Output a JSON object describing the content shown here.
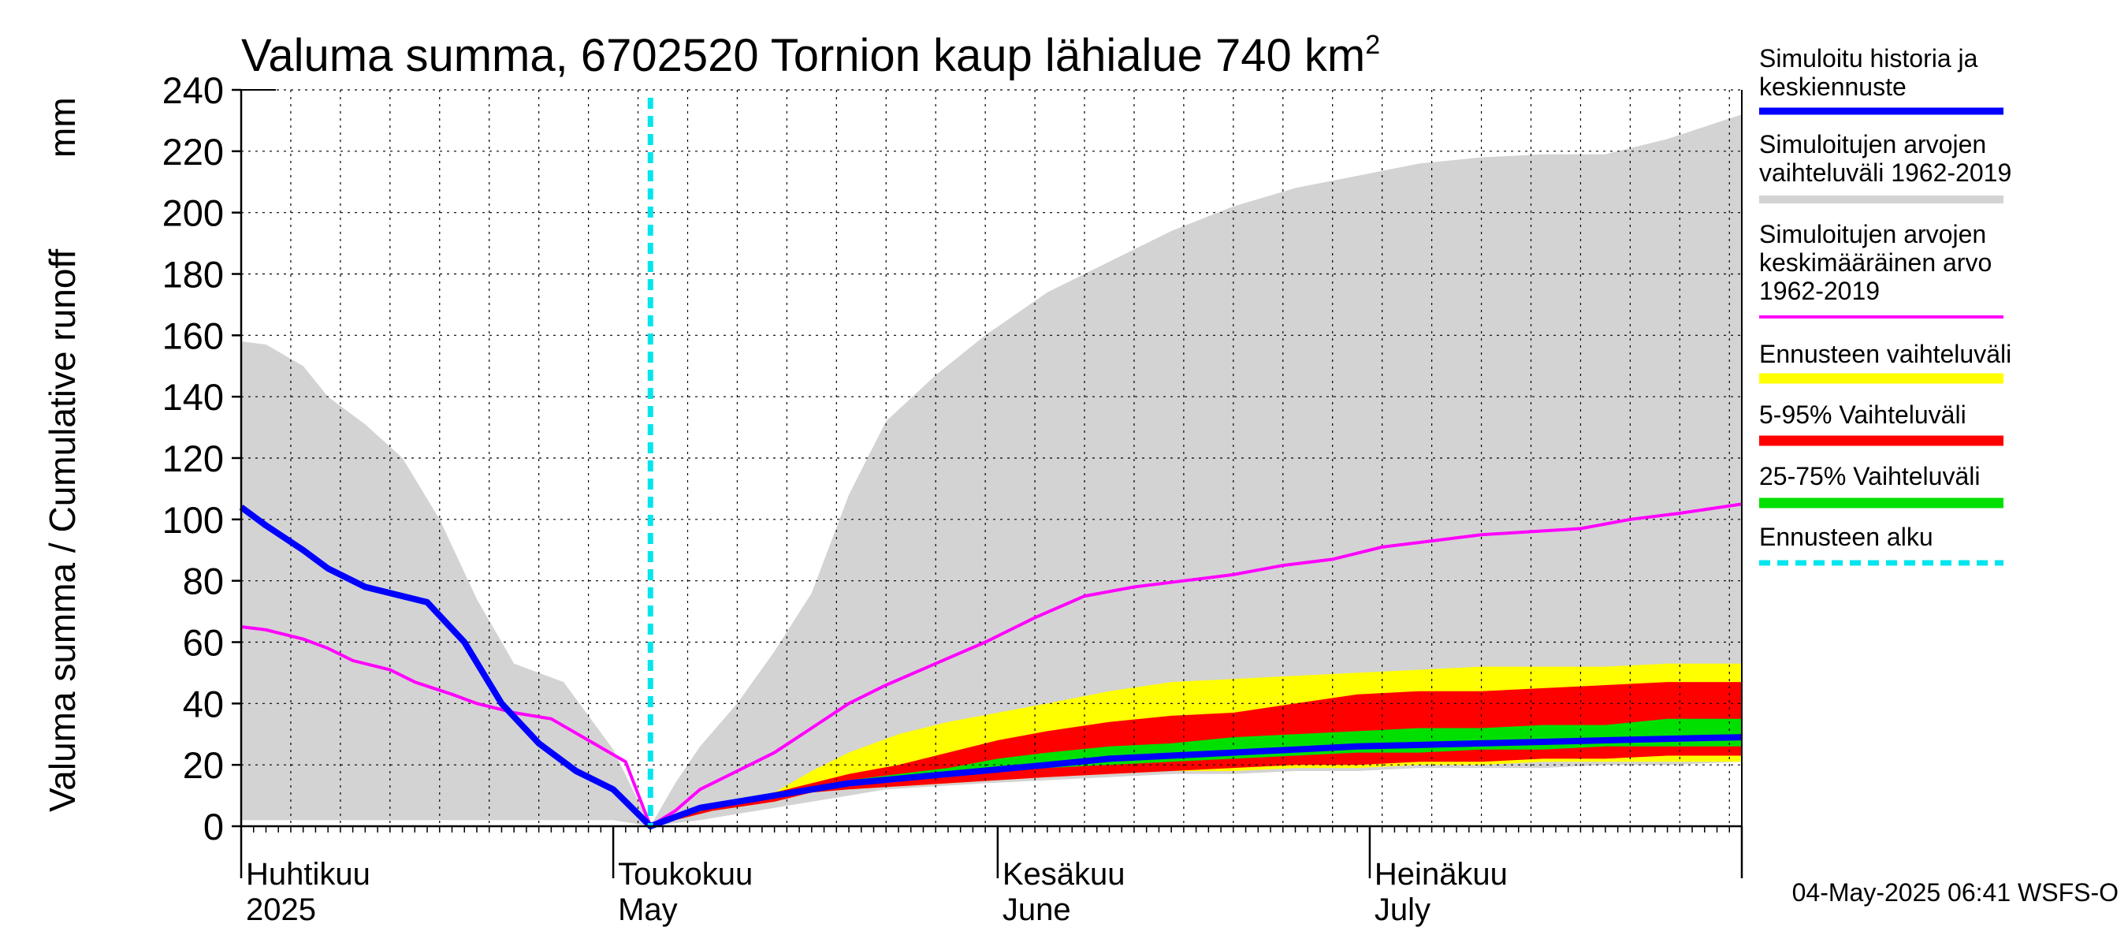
{
  "chart_data": {
    "type": "area",
    "title_main": "Valuma summa, 6702520 Tornion kaup lähialue 740 km",
    "title_sup": "2",
    "ylabel": "Valuma summa / Cumulative runoff",
    "ylabel_unit": "mm",
    "ylim": [
      0,
      240
    ],
    "yticks": [
      0,
      20,
      40,
      60,
      80,
      100,
      120,
      140,
      160,
      180,
      200,
      220,
      240
    ],
    "xlim": [
      "2025-04-01",
      "2025-07-31"
    ],
    "grid": true,
    "months": [
      {
        "date": "2025-04-01",
        "fi": "Huhtikuu",
        "en": "2025"
      },
      {
        "date": "2025-05-01",
        "fi": "Toukokuu",
        "en": "May"
      },
      {
        "date": "2025-06-01",
        "fi": "Kesäkuu",
        "en": "June"
      },
      {
        "date": "2025-07-01",
        "fi": "Heinäkuu",
        "en": "July"
      }
    ],
    "forecast_start": "2025-05-04",
    "colors": {
      "history_range": "#d3d3d3",
      "forecast_range": "#ffff00",
      "p5_95": "#ff0000",
      "p25_75": "#00e000",
      "median": "#0000ff",
      "mean": "#ff00ff",
      "forecast_start": "#00e5ee"
    },
    "legend": [
      {
        "key": "median",
        "lines": [
          "Simuloitu historia ja",
          "keskiennuste"
        ]
      },
      {
        "key": "history_range",
        "lines": [
          "Simuloitujen arvojen",
          "vaihteluväli 1962-2019"
        ]
      },
      {
        "key": "mean",
        "lines": [
          "Simuloitujen arvojen",
          "keskimääräinen arvo",
          "   1962-2019"
        ]
      },
      {
        "key": "forecast_range",
        "lines": [
          "Ennusteen vaihteluväli"
        ]
      },
      {
        "key": "p5_95",
        "lines": [
          "5-95% Vaihteluväli"
        ]
      },
      {
        "key": "p25_75",
        "lines": [
          "25-75% Vaihteluväli"
        ]
      },
      {
        "key": "forecast_start",
        "lines": [
          "Ennusteen alku"
        ]
      }
    ],
    "series": {
      "history_range": {
        "x": [
          "2025-04-01",
          "2025-04-03",
          "2025-04-06",
          "2025-04-08",
          "2025-04-11",
          "2025-04-14",
          "2025-04-17",
          "2025-04-20",
          "2025-04-23",
          "2025-04-27",
          "2025-05-01",
          "2025-05-04",
          "2025-05-06",
          "2025-05-08",
          "2025-05-11",
          "2025-05-14",
          "2025-05-17",
          "2025-05-20",
          "2025-05-23",
          "2025-05-27",
          "2025-05-31",
          "2025-06-05",
          "2025-06-10",
          "2025-06-15",
          "2025-06-20",
          "2025-06-25",
          "2025-06-30",
          "2025-07-05",
          "2025-07-10",
          "2025-07-15",
          "2025-07-20",
          "2025-07-25",
          "2025-07-31"
        ],
        "upper": [
          158,
          157,
          150,
          140,
          131,
          120,
          100,
          74,
          53,
          47,
          25,
          0,
          14,
          26,
          40,
          57,
          76,
          108,
          132,
          147,
          160,
          174,
          184,
          194,
          202,
          208,
          212,
          216,
          218,
          219,
          219,
          224,
          232
        ],
        "lower": [
          2,
          2,
          2,
          2,
          2,
          2,
          2,
          2,
          2,
          2,
          2,
          0,
          1,
          2,
          4,
          6,
          8,
          10,
          12,
          13,
          14,
          15,
          16,
          17,
          17,
          18,
          18,
          19,
          19,
          19,
          20,
          20,
          21
        ]
      },
      "mean": {
        "x": [
          "2025-04-01",
          "2025-04-03",
          "2025-04-06",
          "2025-04-08",
          "2025-04-10",
          "2025-04-13",
          "2025-04-15",
          "2025-04-18",
          "2025-04-20",
          "2025-04-23",
          "2025-04-26",
          "2025-04-29",
          "2025-05-02",
          "2025-05-04",
          "2025-05-06",
          "2025-05-08",
          "2025-05-11",
          "2025-05-14",
          "2025-05-17",
          "2025-05-20",
          "2025-05-23",
          "2025-05-27",
          "2025-05-31",
          "2025-06-04",
          "2025-06-08",
          "2025-06-12",
          "2025-06-16",
          "2025-06-20",
          "2025-06-24",
          "2025-06-28",
          "2025-07-02",
          "2025-07-06",
          "2025-07-10",
          "2025-07-14",
          "2025-07-18",
          "2025-07-22",
          "2025-07-26",
          "2025-07-31"
        ],
        "y": [
          65,
          64,
          61,
          58,
          54,
          51,
          47,
          43,
          40,
          37,
          35,
          28,
          21,
          0,
          5,
          12,
          18,
          24,
          32,
          40,
          46,
          53,
          60,
          68,
          75,
          78,
          80,
          82,
          85,
          87,
          91,
          93,
          95,
          96,
          97,
          100,
          102,
          105
        ]
      },
      "median": {
        "x": [
          "2025-04-01",
          "2025-04-03",
          "2025-04-06",
          "2025-04-08",
          "2025-04-11",
          "2025-04-14",
          "2025-04-16",
          "2025-04-19",
          "2025-04-22",
          "2025-04-25",
          "2025-04-28",
          "2025-05-01",
          "2025-05-04",
          "2025-05-06",
          "2025-05-08",
          "2025-05-11",
          "2025-05-14",
          "2025-05-17",
          "2025-05-20",
          "2025-05-24",
          "2025-05-28",
          "2025-06-01",
          "2025-06-05",
          "2025-06-10",
          "2025-06-15",
          "2025-06-20",
          "2025-06-25",
          "2025-06-30",
          "2025-07-05",
          "2025-07-10",
          "2025-07-15",
          "2025-07-20",
          "2025-07-25",
          "2025-07-31"
        ],
        "y": [
          104,
          98,
          90,
          84,
          78,
          75,
          73,
          60,
          40,
          27,
          18,
          12,
          0,
          3,
          6,
          8,
          10,
          12,
          14,
          15.5,
          17,
          18.5,
          20,
          22,
          23,
          24,
          25,
          26,
          26.5,
          27,
          27.5,
          28,
          28.5,
          29
        ]
      },
      "forecast_band": {
        "x": [
          "2025-05-04",
          "2025-05-09",
          "2025-05-14",
          "2025-05-17",
          "2025-05-20",
          "2025-05-24",
          "2025-05-28",
          "2025-06-01",
          "2025-06-05",
          "2025-06-10",
          "2025-06-15",
          "2025-06-20",
          "2025-06-25",
          "2025-06-30",
          "2025-07-05",
          "2025-07-10",
          "2025-07-15",
          "2025-07-20",
          "2025-07-25",
          "2025-07-31"
        ],
        "max": [
          0,
          7,
          11,
          18,
          24,
          30,
          34,
          37,
          40,
          44,
          47,
          48,
          49,
          50,
          51,
          52,
          52,
          52,
          53,
          53
        ],
        "p95": [
          0,
          7,
          11,
          14,
          17,
          20,
          24,
          28,
          31,
          34,
          36,
          37,
          40,
          43,
          44,
          44,
          45,
          46,
          47,
          47
        ],
        "p75": [
          0,
          7,
          11,
          13,
          15,
          17,
          19,
          22,
          24,
          26,
          27,
          29,
          30,
          31,
          32,
          32,
          33,
          33,
          35,
          35
        ],
        "p25": [
          0,
          6,
          9,
          12,
          13,
          15,
          16,
          18,
          19,
          20,
          21,
          22,
          23,
          24,
          24,
          25,
          25,
          26,
          26,
          26
        ],
        "p5": [
          0,
          5,
          8,
          11,
          12,
          13,
          14,
          15,
          16,
          17,
          18,
          19,
          20,
          20,
          21,
          21,
          22,
          22,
          23,
          23
        ],
        "min": [
          0,
          5,
          8,
          11,
          12,
          13,
          14,
          15,
          16,
          17,
          18,
          18,
          19,
          19,
          20,
          20,
          21,
          21,
          21,
          21
        ]
      }
    }
  },
  "footer": "04-May-2025 06:41 WSFS-O"
}
